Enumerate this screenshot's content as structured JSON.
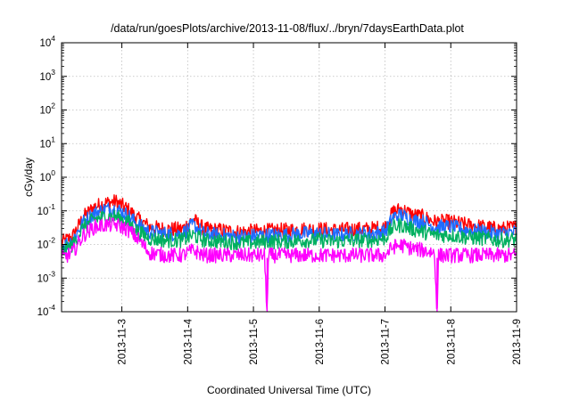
{
  "chart_data": {
    "type": "line",
    "title": "/data/run/goesPlots/archive/2013-11-08/flux/../bryn/7daysEarthData.plot",
    "xlabel": "Coordinated Universal Time (UTC)",
    "ylabel": "cGy/day",
    "yscale": "log",
    "ylim": [
      0.0001,
      10000
    ],
    "xlim": [
      "2013-11-02 02:00",
      "2013-11-09 00:00"
    ],
    "grid": true,
    "x_ticks": [
      "2013-11-3",
      "2013-11-4",
      "2013-11-5",
      "2013-11-6",
      "2013-11-7",
      "2013-11-8",
      "2013-11-9"
    ],
    "y_ticks": [
      {
        "base": "10",
        "exp": "-4"
      },
      {
        "base": "10",
        "exp": "-3"
      },
      {
        "base": "10",
        "exp": "-2"
      },
      {
        "base": "10",
        "exp": "-1"
      },
      {
        "base": "10",
        "exp": "0"
      },
      {
        "base": "10",
        "exp": "1"
      },
      {
        "base": "10",
        "exp": "2"
      },
      {
        "base": "10",
        "exp": "3"
      },
      {
        "base": "10",
        "exp": "4"
      }
    ],
    "series": [
      {
        "color": "#ff0000",
        "points": [
          [
            "2013-11-02 02:00",
            0.012
          ],
          [
            "2013-11-02 06:00",
            0.018
          ],
          [
            "2013-11-02 10:00",
            0.07
          ],
          [
            "2013-11-02 14:00",
            0.14
          ],
          [
            "2013-11-02 18:00",
            0.18
          ],
          [
            "2013-11-02 22:00",
            0.2
          ],
          [
            "2013-11-03 02:00",
            0.12
          ],
          [
            "2013-11-03 06:00",
            0.06
          ],
          [
            "2013-11-03 10:00",
            0.035
          ],
          [
            "2013-11-03 16:00",
            0.03
          ],
          [
            "2013-11-03 22:00",
            0.03
          ],
          [
            "2013-11-04 02:00",
            0.06
          ],
          [
            "2013-11-04 06:00",
            0.03
          ],
          [
            "2013-11-04 12:00",
            0.028
          ],
          [
            "2013-11-04 18:00",
            0.025
          ],
          [
            "2013-11-05 00:00",
            0.026
          ],
          [
            "2013-11-05 06:00",
            0.027
          ],
          [
            "2013-11-05 12:00",
            0.028
          ],
          [
            "2013-11-05 18:00",
            0.03
          ],
          [
            "2013-11-06 00:00",
            0.03
          ],
          [
            "2013-11-06 06:00",
            0.028
          ],
          [
            "2013-11-06 12:00",
            0.03
          ],
          [
            "2013-11-06 18:00",
            0.03
          ],
          [
            "2013-11-07 00:00",
            0.035
          ],
          [
            "2013-11-07 03:00",
            0.1
          ],
          [
            "2013-11-07 06:00",
            0.12
          ],
          [
            "2013-11-07 10:00",
            0.08
          ],
          [
            "2013-11-07 14:00",
            0.07
          ],
          [
            "2013-11-07 18:00",
            0.05
          ],
          [
            "2013-11-08 00:00",
            0.05
          ],
          [
            "2013-11-08 06:00",
            0.04
          ],
          [
            "2013-11-08 12:00",
            0.035
          ],
          [
            "2013-11-08 18:00",
            0.03
          ],
          [
            "2013-11-09 00:00",
            0.035
          ]
        ]
      },
      {
        "color": "#1e6cff",
        "points": [
          [
            "2013-11-02 02:00",
            0.009
          ],
          [
            "2013-11-02 06:00",
            0.014
          ],
          [
            "2013-11-02 10:00",
            0.05
          ],
          [
            "2013-11-02 14:00",
            0.09
          ],
          [
            "2013-11-02 18:00",
            0.12
          ],
          [
            "2013-11-02 22:00",
            0.12
          ],
          [
            "2013-11-03 02:00",
            0.08
          ],
          [
            "2013-11-03 06:00",
            0.04
          ],
          [
            "2013-11-03 10:00",
            0.025
          ],
          [
            "2013-11-03 16:00",
            0.022
          ],
          [
            "2013-11-03 22:00",
            0.022
          ],
          [
            "2013-11-04 02:00",
            0.04
          ],
          [
            "2013-11-04 06:00",
            0.022
          ],
          [
            "2013-11-04 12:00",
            0.02
          ],
          [
            "2013-11-04 18:00",
            0.018
          ],
          [
            "2013-11-05 00:00",
            0.019
          ],
          [
            "2013-11-05 06:00",
            0.02
          ],
          [
            "2013-11-05 12:00",
            0.02
          ],
          [
            "2013-11-05 18:00",
            0.022
          ],
          [
            "2013-11-06 00:00",
            0.022
          ],
          [
            "2013-11-06 06:00",
            0.02
          ],
          [
            "2013-11-06 12:00",
            0.022
          ],
          [
            "2013-11-06 18:00",
            0.022
          ],
          [
            "2013-11-07 00:00",
            0.025
          ],
          [
            "2013-11-07 03:00",
            0.07
          ],
          [
            "2013-11-07 06:00",
            0.08
          ],
          [
            "2013-11-07 10:00",
            0.055
          ],
          [
            "2013-11-07 14:00",
            0.05
          ],
          [
            "2013-11-07 18:00",
            0.035
          ],
          [
            "2013-11-08 00:00",
            0.035
          ],
          [
            "2013-11-08 06:00",
            0.028
          ],
          [
            "2013-11-08 12:00",
            0.025
          ],
          [
            "2013-11-08 18:00",
            0.022
          ],
          [
            "2013-11-09 00:00",
            0.025
          ]
        ]
      },
      {
        "color": "#00b060",
        "points": [
          [
            "2013-11-02 02:00",
            0.006
          ],
          [
            "2013-11-02 06:00",
            0.01
          ],
          [
            "2013-11-02 10:00",
            0.035
          ],
          [
            "2013-11-02 14:00",
            0.06
          ],
          [
            "2013-11-02 18:00",
            0.07
          ],
          [
            "2013-11-02 22:00",
            0.07
          ],
          [
            "2013-11-03 02:00",
            0.05
          ],
          [
            "2013-11-03 06:00",
            0.025
          ],
          [
            "2013-11-03 10:00",
            0.016
          ],
          [
            "2013-11-03 16:00",
            0.014
          ],
          [
            "2013-11-03 22:00",
            0.014
          ],
          [
            "2013-11-04 02:00",
            0.02
          ],
          [
            "2013-11-04 06:00",
            0.014
          ],
          [
            "2013-11-04 12:00",
            0.013
          ],
          [
            "2013-11-04 18:00",
            0.012
          ],
          [
            "2013-11-05 00:00",
            0.012
          ],
          [
            "2013-11-05 06:00",
            0.013
          ],
          [
            "2013-11-05 12:00",
            0.013
          ],
          [
            "2013-11-05 18:00",
            0.014
          ],
          [
            "2013-11-06 00:00",
            0.014
          ],
          [
            "2013-11-06 06:00",
            0.013
          ],
          [
            "2013-11-06 12:00",
            0.014
          ],
          [
            "2013-11-06 18:00",
            0.014
          ],
          [
            "2013-11-07 00:00",
            0.016
          ],
          [
            "2013-11-07 03:00",
            0.035
          ],
          [
            "2013-11-07 06:00",
            0.04
          ],
          [
            "2013-11-07 10:00",
            0.03
          ],
          [
            "2013-11-07 14:00",
            0.025
          ],
          [
            "2013-11-07 18:00",
            0.02
          ],
          [
            "2013-11-08 00:00",
            0.02
          ],
          [
            "2013-11-08 06:00",
            0.017
          ],
          [
            "2013-11-08 12:00",
            0.016
          ],
          [
            "2013-11-08 18:00",
            0.014
          ],
          [
            "2013-11-09 00:00",
            0.015
          ]
        ]
      },
      {
        "color": "#ff00ff",
        "points": [
          [
            "2013-11-02 02:00",
            0.004
          ],
          [
            "2013-11-02 06:00",
            0.006
          ],
          [
            "2013-11-02 10:00",
            0.02
          ],
          [
            "2013-11-02 14:00",
            0.035
          ],
          [
            "2013-11-02 18:00",
            0.04
          ],
          [
            "2013-11-02 22:00",
            0.04
          ],
          [
            "2013-11-03 02:00",
            0.03
          ],
          [
            "2013-11-03 06:00",
            0.015
          ],
          [
            "2013-11-03 10:00",
            0.006
          ],
          [
            "2013-11-03 16:00",
            0.005
          ],
          [
            "2013-11-03 22:00",
            0.005
          ],
          [
            "2013-11-04 02:00",
            0.007
          ],
          [
            "2013-11-04 06:00",
            0.005
          ],
          [
            "2013-11-04 12:00",
            0.005
          ],
          [
            "2013-11-04 18:00",
            0.005
          ],
          [
            "2013-11-05 00:00",
            0.005
          ],
          [
            "2013-11-05 04:00",
            0.005
          ],
          [
            "2013-11-05 05:00",
            0.0001
          ],
          [
            "2013-11-05 05:30",
            0.005
          ],
          [
            "2013-11-05 12:00",
            0.005
          ],
          [
            "2013-11-05 18:00",
            0.005
          ],
          [
            "2013-11-06 00:00",
            0.005
          ],
          [
            "2013-11-06 06:00",
            0.005
          ],
          [
            "2013-11-06 12:00",
            0.005
          ],
          [
            "2013-11-06 18:00",
            0.005
          ],
          [
            "2013-11-07 00:00",
            0.005
          ],
          [
            "2013-11-07 03:00",
            0.009
          ],
          [
            "2013-11-07 06:00",
            0.01
          ],
          [
            "2013-11-07 10:00",
            0.008
          ],
          [
            "2013-11-07 14:00",
            0.007
          ],
          [
            "2013-11-07 18:00",
            0.006
          ],
          [
            "2013-11-07 19:00",
            0.0001
          ],
          [
            "2013-11-07 19:30",
            0.005
          ],
          [
            "2013-11-08 00:00",
            0.005
          ],
          [
            "2013-11-08 06:00",
            0.005
          ],
          [
            "2013-11-08 12:00",
            0.005
          ],
          [
            "2013-11-08 18:00",
            0.005
          ],
          [
            "2013-11-09 00:00",
            0.005
          ]
        ]
      }
    ]
  }
}
